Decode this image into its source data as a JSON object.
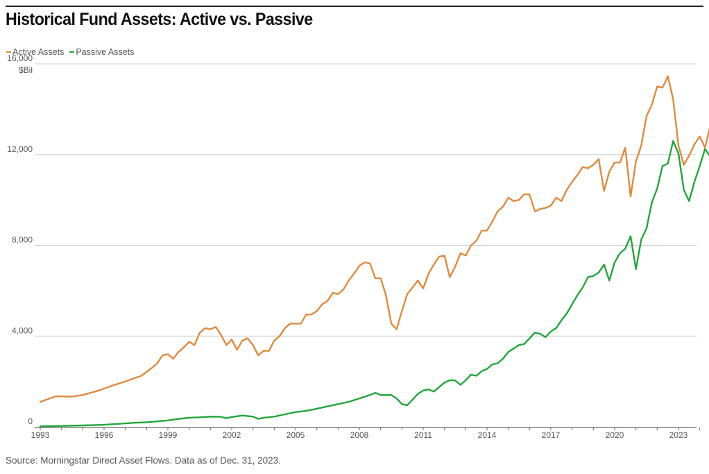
{
  "title": "Historical Fund Assets: Active vs. Passive",
  "source": "Source: Morningstar Direct Asset Flows. Data as of Dec. 31, 2023.",
  "colors": {
    "active": "#E08A3C",
    "passive": "#22A63A",
    "grid": "#cccccc",
    "axis": "#666666"
  },
  "chart_data": {
    "type": "line",
    "title": "Historical Fund Assets: Active vs. Passive",
    "ylabel": "$Bil",
    "xlabel": "",
    "ylim": [
      0,
      16000
    ],
    "xlim": [
      1993,
      2024
    ],
    "y_ticks": [
      0,
      4000,
      8000,
      12000,
      16000
    ],
    "y_tick_labels": [
      "0",
      "4,000",
      "8,000",
      "12,000",
      "16,000"
    ],
    "y_unit_label": "$Bil",
    "x_ticks": [
      1993,
      1996,
      1999,
      2002,
      2005,
      2008,
      2011,
      2014,
      2017,
      2020,
      2023
    ],
    "grid": "horizontal",
    "legend_position": "top-left",
    "series": [
      {
        "name": "Active Assets",
        "points": [
          [
            1993.0,
            1100
          ],
          [
            1993.75,
            1350
          ],
          [
            1994.5,
            1330
          ],
          [
            1995.0,
            1400
          ],
          [
            1995.75,
            1600
          ],
          [
            1996.5,
            1850
          ],
          [
            1997.0,
            2000
          ],
          [
            1997.75,
            2250
          ],
          [
            1998.25,
            2600
          ],
          [
            1998.5,
            2800
          ],
          [
            1998.75,
            3150
          ],
          [
            1999.0,
            3200
          ],
          [
            1999.25,
            3000
          ],
          [
            1999.5,
            3300
          ],
          [
            1999.75,
            3500
          ],
          [
            2000.0,
            3750
          ],
          [
            2000.25,
            3600
          ],
          [
            2000.5,
            4150
          ],
          [
            2000.75,
            4350
          ],
          [
            2001.0,
            4300
          ],
          [
            2001.25,
            4400
          ],
          [
            2001.5,
            4050
          ],
          [
            2001.75,
            3600
          ],
          [
            2002.0,
            3850
          ],
          [
            2002.25,
            3400
          ],
          [
            2002.5,
            3800
          ],
          [
            2002.75,
            3900
          ],
          [
            2003.0,
            3600
          ],
          [
            2003.25,
            3150
          ],
          [
            2003.5,
            3350
          ],
          [
            2003.75,
            3350
          ],
          [
            2004.0,
            3800
          ],
          [
            2004.25,
            4000
          ],
          [
            2004.5,
            4350
          ],
          [
            2004.75,
            4550
          ],
          [
            2005.25,
            4550
          ],
          [
            2005.5,
            4950
          ],
          [
            2005.75,
            4950
          ],
          [
            2006.0,
            5100
          ],
          [
            2006.25,
            5400
          ],
          [
            2006.5,
            5550
          ],
          [
            2006.75,
            5900
          ],
          [
            2007.0,
            5850
          ],
          [
            2007.25,
            6050
          ],
          [
            2007.5,
            6450
          ],
          [
            2007.75,
            6750
          ],
          [
            2008.0,
            7100
          ],
          [
            2008.25,
            7250
          ],
          [
            2008.5,
            7200
          ],
          [
            2008.75,
            6550
          ],
          [
            2009.0,
            6550
          ],
          [
            2009.25,
            5800
          ],
          [
            2009.5,
            4550
          ],
          [
            2009.75,
            4300
          ],
          [
            2010.0,
            5100
          ],
          [
            2010.25,
            5850
          ],
          [
            2010.5,
            6150
          ],
          [
            2010.75,
            6450
          ],
          [
            2011.0,
            6100
          ],
          [
            2011.25,
            6750
          ],
          [
            2011.5,
            7150
          ],
          [
            2011.75,
            7500
          ],
          [
            2012.0,
            7550
          ],
          [
            2012.25,
            6600
          ],
          [
            2012.5,
            7050
          ],
          [
            2012.75,
            7650
          ],
          [
            2013.0,
            7550
          ],
          [
            2013.25,
            8000
          ],
          [
            2013.5,
            8200
          ],
          [
            2013.75,
            8650
          ],
          [
            2014.0,
            8650
          ],
          [
            2014.25,
            9050
          ],
          [
            2014.5,
            9500
          ],
          [
            2014.75,
            9700
          ],
          [
            2015.0,
            10100
          ],
          [
            2015.25,
            9950
          ],
          [
            2015.5,
            10000
          ],
          [
            2015.75,
            10250
          ],
          [
            2016.0,
            10250
          ],
          [
            2016.25,
            9500
          ],
          [
            2016.5,
            9600
          ],
          [
            2016.75,
            9650
          ],
          [
            2017.0,
            9750
          ],
          [
            2017.25,
            10100
          ],
          [
            2017.5,
            9950
          ],
          [
            2017.75,
            10450
          ],
          [
            2018.0,
            10800
          ],
          [
            2018.25,
            11100
          ],
          [
            2018.5,
            11450
          ],
          [
            2018.75,
            11400
          ],
          [
            2019.0,
            11550
          ],
          [
            2019.25,
            11800
          ],
          [
            2019.5,
            10400
          ],
          [
            2019.75,
            11250
          ],
          [
            2020.0,
            11650
          ],
          [
            2020.25,
            11650
          ],
          [
            2020.5,
            12300
          ],
          [
            2020.75,
            10150
          ],
          [
            2021.0,
            11700
          ],
          [
            2021.25,
            12400
          ],
          [
            2021.5,
            13700
          ],
          [
            2021.75,
            14200
          ],
          [
            2022.0,
            15000
          ],
          [
            2022.25,
            14950
          ],
          [
            2022.5,
            15450
          ],
          [
            2022.75,
            14450
          ],
          [
            2023.0,
            12400
          ],
          [
            2023.25,
            11550
          ],
          [
            2023.5,
            11950
          ],
          [
            2023.75,
            12450
          ],
          [
            2024.0,
            12800
          ],
          [
            2024.25,
            12300
          ],
          [
            2024.5,
            13300
          ]
        ]
      },
      {
        "name": "Passive Assets",
        "points": [
          [
            1993.0,
            20
          ],
          [
            1994.0,
            40
          ],
          [
            1995.0,
            60
          ],
          [
            1996.0,
            90
          ],
          [
            1996.5,
            120
          ],
          [
            1997.0,
            150
          ],
          [
            1997.5,
            180
          ],
          [
            1998.0,
            200
          ],
          [
            1998.5,
            240
          ],
          [
            1999.0,
            280
          ],
          [
            1999.5,
            350
          ],
          [
            2000.0,
            400
          ],
          [
            2000.5,
            420
          ],
          [
            2001.0,
            450
          ],
          [
            2001.5,
            440
          ],
          [
            2001.75,
            380
          ],
          [
            2002.0,
            430
          ],
          [
            2002.5,
            500
          ],
          [
            2003.0,
            450
          ],
          [
            2003.25,
            350
          ],
          [
            2003.5,
            400
          ],
          [
            2004.0,
            450
          ],
          [
            2004.5,
            550
          ],
          [
            2005.0,
            650
          ],
          [
            2005.5,
            700
          ],
          [
            2006.0,
            800
          ],
          [
            2006.5,
            900
          ],
          [
            2007.0,
            1000
          ],
          [
            2007.5,
            1100
          ],
          [
            2008.0,
            1250
          ],
          [
            2008.5,
            1400
          ],
          [
            2008.75,
            1500
          ],
          [
            2009.0,
            1400
          ],
          [
            2009.5,
            1400
          ],
          [
            2009.75,
            1250
          ],
          [
            2010.0,
            1000
          ],
          [
            2010.25,
            950
          ],
          [
            2010.5,
            1200
          ],
          [
            2010.75,
            1450
          ],
          [
            2011.0,
            1600
          ],
          [
            2011.25,
            1650
          ],
          [
            2011.5,
            1550
          ],
          [
            2011.75,
            1750
          ],
          [
            2012.0,
            1950
          ],
          [
            2012.25,
            2050
          ],
          [
            2012.5,
            2050
          ],
          [
            2012.75,
            1850
          ],
          [
            2013.0,
            2050
          ],
          [
            2013.25,
            2300
          ],
          [
            2013.5,
            2250
          ],
          [
            2013.75,
            2450
          ],
          [
            2014.0,
            2550
          ],
          [
            2014.25,
            2750
          ],
          [
            2014.5,
            2800
          ],
          [
            2014.75,
            3000
          ],
          [
            2015.0,
            3300
          ],
          [
            2015.25,
            3450
          ],
          [
            2015.5,
            3600
          ],
          [
            2015.75,
            3650
          ],
          [
            2016.0,
            3900
          ],
          [
            2016.25,
            4150
          ],
          [
            2016.5,
            4100
          ],
          [
            2016.75,
            3950
          ],
          [
            2017.0,
            4200
          ],
          [
            2017.25,
            4350
          ],
          [
            2017.5,
            4700
          ],
          [
            2017.75,
            5000
          ],
          [
            2018.0,
            5400
          ],
          [
            2018.25,
            5800
          ],
          [
            2018.5,
            6150
          ],
          [
            2018.75,
            6600
          ],
          [
            2019.0,
            6650
          ],
          [
            2019.25,
            6800
          ],
          [
            2019.5,
            7150
          ],
          [
            2019.75,
            6450
          ],
          [
            2020.0,
            7250
          ],
          [
            2020.25,
            7650
          ],
          [
            2020.5,
            7850
          ],
          [
            2020.75,
            8400
          ],
          [
            2021.0,
            6950
          ],
          [
            2021.25,
            8250
          ],
          [
            2021.5,
            8750
          ],
          [
            2021.75,
            9900
          ],
          [
            2022.0,
            10500
          ],
          [
            2022.25,
            11500
          ],
          [
            2022.5,
            11600
          ],
          [
            2022.75,
            12600
          ],
          [
            2023.0,
            12050
          ],
          [
            2023.25,
            10450
          ],
          [
            2023.5,
            9950
          ],
          [
            2023.75,
            10800
          ],
          [
            2024.0,
            11500
          ],
          [
            2024.25,
            12250
          ],
          [
            2024.5,
            11900
          ],
          [
            2024.75,
            13250
          ]
        ]
      }
    ]
  }
}
